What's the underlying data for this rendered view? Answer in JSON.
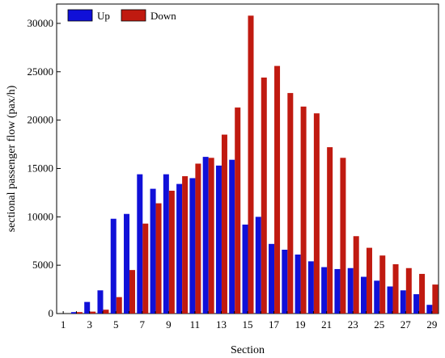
{
  "chart_data": {
    "type": "bar",
    "xlabel": "Section",
    "ylabel": "sectional passenger  flow (pax/h)",
    "ylim": [
      0,
      32000
    ],
    "yticks": [
      0,
      5000,
      10000,
      15000,
      20000,
      25000,
      30000
    ],
    "categories": [
      "1",
      "2",
      "3",
      "4",
      "5",
      "6",
      "7",
      "8",
      "9",
      "10",
      "11",
      "12",
      "13",
      "14",
      "15",
      "16",
      "17",
      "18",
      "19",
      "20",
      "21",
      "22",
      "23",
      "24",
      "25",
      "26",
      "27",
      "28",
      "29"
    ],
    "xtick_labels": [
      "1",
      "3",
      "5",
      "7",
      "9",
      "11",
      "13",
      "15",
      "17",
      "19",
      "21",
      "23",
      "25",
      "27",
      "29"
    ],
    "legend_position": "top-left",
    "grid": false,
    "series": [
      {
        "name": "Up",
        "color": "#1010d8",
        "values": [
          0,
          150,
          1200,
          2400,
          9800,
          10300,
          14400,
          12900,
          14400,
          13400,
          14000,
          16200,
          15300,
          15900,
          9200,
          10000,
          7200,
          6600,
          6100,
          5400,
          4800,
          4600,
          4700,
          3800,
          3400,
          2800,
          2400,
          2000,
          900
        ]
      },
      {
        "name": "Down",
        "color": "#c01a10",
        "values": [
          0,
          150,
          200,
          400,
          1700,
          4500,
          9300,
          11400,
          12700,
          14200,
          15500,
          16100,
          18500,
          21300,
          30800,
          24400,
          25600,
          22800,
          21400,
          20700,
          17200,
          16100,
          8000,
          6800,
          6000,
          5100,
          4700,
          4100,
          3000
        ]
      }
    ]
  }
}
